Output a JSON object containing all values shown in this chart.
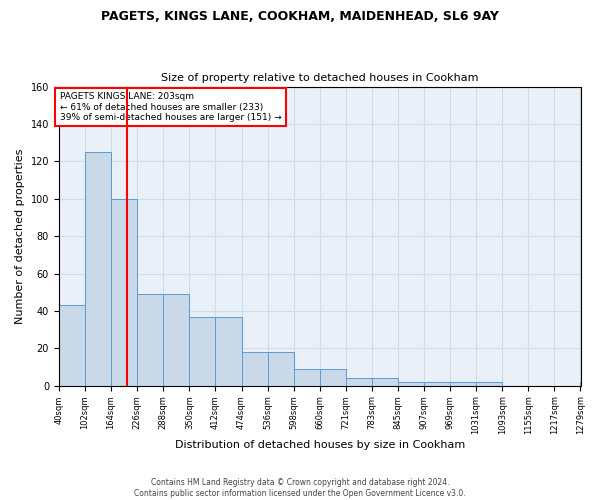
{
  "title1": "PAGETS, KINGS LANE, COOKHAM, MAIDENHEAD, SL6 9AY",
  "title2": "Size of property relative to detached houses in Cookham",
  "xlabel": "Distribution of detached houses by size in Cookham",
  "ylabel": "Number of detached properties",
  "bar_edges": [
    40,
    102,
    164,
    226,
    288,
    350,
    412,
    474,
    536,
    598,
    660,
    721,
    783,
    845,
    907,
    969,
    1031,
    1093,
    1155,
    1217,
    1279
  ],
  "bar_heights": [
    43,
    125,
    100,
    49,
    49,
    37,
    37,
    18,
    18,
    9,
    9,
    4,
    4,
    2,
    2,
    2,
    2,
    0,
    0,
    0,
    2
  ],
  "bar_color": "#c9d9e8",
  "bar_edge_color": "#5b9bd5",
  "grid_color": "#d0dce8",
  "background_color": "#eaf0f8",
  "red_line_x": 203,
  "annotation_text": "PAGETS KINGS LANE: 203sqm\n← 61% of detached houses are smaller (233)\n39% of semi-detached houses are larger (151) →",
  "annotation_box_color": "white",
  "annotation_border_color": "red",
  "footer1": "Contains HM Land Registry data © Crown copyright and database right 2024.",
  "footer2": "Contains public sector information licensed under the Open Government Licence v3.0.",
  "tick_labels": [
    "40sqm",
    "102sqm",
    "164sqm",
    "226sqm",
    "288sqm",
    "350sqm",
    "412sqm",
    "474sqm",
    "536sqm",
    "598sqm",
    "660sqm",
    "721sqm",
    "783sqm",
    "845sqm",
    "907sqm",
    "969sqm",
    "1031sqm",
    "1093sqm",
    "1155sqm",
    "1217sqm",
    "1279sqm"
  ],
  "ylim": [
    0,
    160
  ],
  "yticks": [
    0,
    20,
    40,
    60,
    80,
    100,
    120,
    140,
    160
  ],
  "title1_fontsize": 9,
  "title2_fontsize": 8,
  "ylabel_fontsize": 8,
  "xlabel_fontsize": 8,
  "tick_fontsize": 6,
  "footer_fontsize": 5.5
}
